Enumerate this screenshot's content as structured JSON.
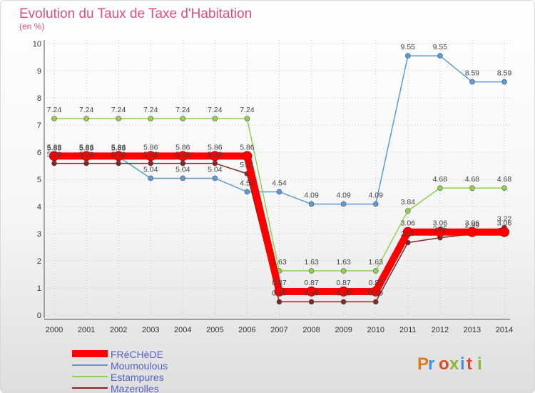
{
  "chart_data": {
    "type": "line",
    "title": "Evolution du Taux de Taxe d'Habitation",
    "subtitle": "(en %)",
    "x": [
      "2000",
      "2001",
      "2002",
      "2003",
      "2004",
      "2005",
      "2006",
      "2007",
      "2008",
      "2009",
      "2010",
      "2011",
      "2012",
      "2013",
      "2014"
    ],
    "ylim": [
      0,
      10
    ],
    "yticks": [
      "0",
      "1",
      "2",
      "3",
      "4",
      "5",
      "6",
      "7",
      "8",
      "9",
      "10"
    ],
    "grid": true,
    "legend_position": "bottom-left",
    "series": [
      {
        "name": "FRéCHèDE",
        "color": "#ff0000",
        "values": [
          5.86,
          5.86,
          5.86,
          5.86,
          5.86,
          5.86,
          5.86,
          0.87,
          0.87,
          0.87,
          0.87,
          3.06,
          3.06,
          3.06,
          3.06
        ],
        "labels": [
          "5.86",
          "5.86",
          "5.86",
          "5.86",
          "5.86",
          "5.86",
          "5.86",
          "0.87",
          "0.87",
          "0.87",
          "0.87",
          "3.06",
          "3.06",
          "3.06",
          "3.06"
        ]
      },
      {
        "name": "Moumoulous",
        "color": "#5b9bd5",
        "values": [
          5.83,
          5.83,
          5.83,
          5.04,
          5.04,
          5.04,
          4.54,
          4.54,
          4.09,
          4.09,
          4.09,
          9.55,
          9.55,
          8.59,
          8.59
        ],
        "labels": [
          "5.83",
          "5.83",
          "5.83",
          "5.04",
          "5.04",
          "5.04",
          "4.54",
          "4.54",
          "4.09",
          "4.09",
          "4.09",
          "9.55",
          "9.55",
          "8.59",
          "8.59"
        ]
      },
      {
        "name": "Estampures",
        "color": "#8fd14f",
        "values": [
          7.24,
          7.24,
          7.24,
          7.24,
          7.24,
          7.24,
          7.24,
          1.63,
          1.63,
          1.63,
          1.63,
          3.84,
          4.68,
          4.68,
          4.68
        ],
        "labels": [
          "7.24",
          "7.24",
          "7.24",
          "7.24",
          "7.24",
          "7.24",
          "7.24",
          "1.63",
          "1.63",
          "1.63",
          "1.63",
          "3.84",
          "4.68",
          "4.68",
          "4.68"
        ]
      },
      {
        "name": "Mazerolles",
        "color": "#7b2a2a",
        "values": [
          5.59,
          5.59,
          5.59,
          5.59,
          5.59,
          5.59,
          5.21,
          0.49,
          0.49,
          0.49,
          0.49,
          2.67,
          2.85,
          2.99,
          3.22
        ],
        "labels": [
          "5.59",
          "5.59",
          "5.59",
          "5.59",
          "5.59",
          "5.59",
          "5.21",
          "0.49",
          "0.49",
          "0.49",
          "0.49",
          "2.67",
          "2.85",
          "2.99",
          "3.22"
        ]
      }
    ]
  },
  "logo": {
    "text": "Proxiti"
  }
}
